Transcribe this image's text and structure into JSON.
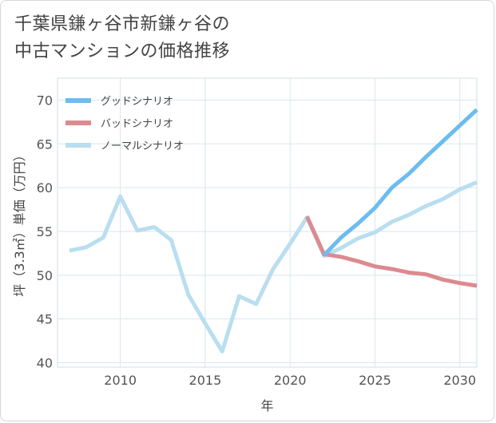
{
  "title": {
    "line1": "千葉県鎌ヶ谷市新鎌ヶ谷の",
    "line2": "中古マンションの価格推移"
  },
  "colors": {
    "good": "#6cbcf0",
    "bad": "#dc8a90",
    "normal": "#b9deef",
    "grid": "#d8e6ee",
    "text": "#555555"
  },
  "chart_data": {
    "type": "line",
    "xlabel": "年",
    "ylabel": "坪（3.3㎡）単価（万円）",
    "xlim": [
      2006.3,
      2031
    ],
    "ylim": [
      39.5,
      72.5
    ],
    "xticks": [
      2010,
      2015,
      2020,
      2025,
      2030
    ],
    "yticks": [
      40,
      45,
      50,
      55,
      60,
      65,
      70
    ],
    "legend_position": "top-left",
    "series": [
      {
        "name": "グッドシナリオ",
        "color_key": "good",
        "x": [
          2022,
          2023,
          2024,
          2025,
          2026,
          2027,
          2028,
          2029,
          2030,
          2031
        ],
        "y": [
          52.3,
          54.3,
          55.9,
          57.7,
          60.0,
          61.6,
          63.5,
          65.3,
          67.1,
          68.9
        ]
      },
      {
        "name": "バッドシナリオ",
        "color_key": "bad",
        "x": [
          2021,
          2022,
          2023,
          2024,
          2025,
          2026,
          2027,
          2028,
          2029,
          2030,
          2031
        ],
        "y": [
          56.7,
          52.4,
          52.1,
          51.6,
          51.0,
          50.7,
          50.3,
          50.1,
          49.5,
          49.1,
          48.8
        ]
      },
      {
        "name": "ノーマルシナリオ",
        "color_key": "normal",
        "x": [
          2007,
          2008,
          2009,
          2010,
          2011,
          2012,
          2013,
          2014,
          2015,
          2016,
          2017,
          2018,
          2019,
          2020,
          2021,
          2022,
          2023,
          2024,
          2025,
          2026,
          2027,
          2028,
          2029,
          2030,
          2031
        ],
        "y": [
          52.8,
          53.2,
          54.3,
          59.0,
          55.1,
          55.5,
          54.0,
          47.8,
          44.5,
          41.3,
          47.6,
          46.7,
          50.7,
          53.6,
          56.6,
          52.2,
          53.1,
          54.2,
          54.9,
          56.1,
          56.9,
          57.9,
          58.7,
          59.8,
          60.6
        ]
      }
    ]
  }
}
